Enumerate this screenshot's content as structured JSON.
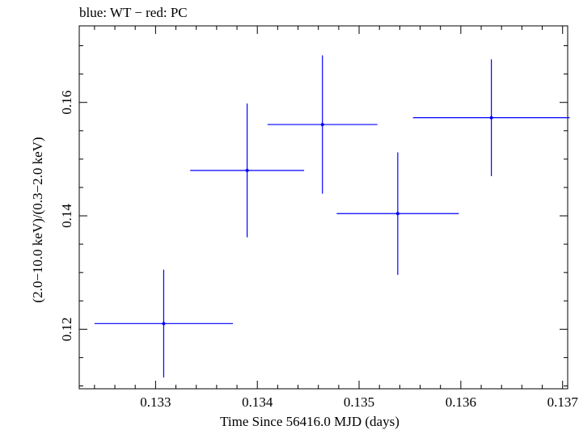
{
  "chart_data": {
    "type": "scatter",
    "title": "blue: WT − red: PC",
    "xlabel": "Time Since 56416.0 MJD (days)",
    "ylabel": "(2.0−10.0 keV)/(0.3−2.0 keV)",
    "xlim": [
      0.13225,
      0.13705
    ],
    "ylim": [
      0.1095,
      0.1735
    ],
    "x_ticks": [
      0.133,
      0.134,
      0.135,
      0.136,
      0.137
    ],
    "x_tick_labels": [
      "0.133",
      "0.134",
      "0.135",
      "0.136",
      "0.137"
    ],
    "y_ticks": [
      0.12,
      0.14,
      0.16
    ],
    "y_tick_labels": [
      "0.12",
      "0.14",
      "0.16"
    ],
    "grid": false,
    "series": [
      {
        "color": "#0000ff",
        "points": [
          {
            "x": 0.13308,
            "y": 0.121,
            "xerr": 0.00068,
            "yerr": 0.0095
          },
          {
            "x": 0.1339,
            "y": 0.148,
            "xerr": 0.00056,
            "yerr": 0.0118
          },
          {
            "x": 0.13464,
            "y": 0.1561,
            "xerr": 0.00054,
            "yerr": 0.0122
          },
          {
            "x": 0.13538,
            "y": 0.1404,
            "xerr": 0.0006,
            "yerr": 0.0108
          },
          {
            "x": 0.1363,
            "y": 0.1573,
            "xerr": 0.00077,
            "yerr": 0.0103
          }
        ]
      }
    ]
  }
}
